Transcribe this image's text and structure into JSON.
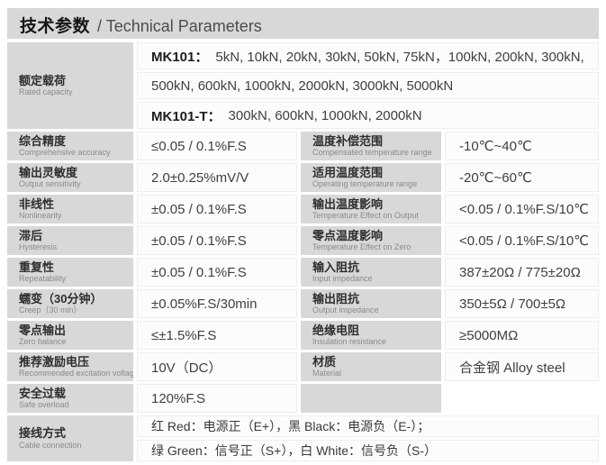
{
  "title": {
    "zh": "技术参数",
    "en": "/ Technical Parameters"
  },
  "colors": {
    "panel_gray": "#d8d8d8",
    "value_bg": "#fcfcfc",
    "value_border": "#ededed",
    "label_text": "#2e2e2e",
    "sublabel_text": "#8a8a8a",
    "value_text": "#3f3f3f"
  },
  "rated_capacity": {
    "key": "rated-capacity",
    "label": {
      "zh": "额定载荷",
      "en": "Rated capacity"
    },
    "lines": [
      {
        "bold": "MK101：",
        "text": "5kN, 10kN, 20kN, 30kN, 50kN, 75kN，100kN, 200kN, 300kN,"
      },
      {
        "bold": "",
        "text": "500kN, 600kN, 1000kN, 2000kN, 3000kN, 5000kN"
      },
      {
        "bold": "MK101-T：",
        "text": "300kN, 600kN, 1000kN, 2000kN"
      }
    ]
  },
  "spec_rows": [
    {
      "left": {
        "key": "comprehensive-accuracy",
        "label": {
          "zh": "综合精度",
          "en": "Comprehensive accuracy"
        },
        "value": "≤0.05 / 0.1%F.S"
      },
      "right": {
        "key": "compensated-temperature-range",
        "label": {
          "zh": "温度补偿范围",
          "en": "Compensated temperature range"
        },
        "value": "-10℃~40℃"
      }
    },
    {
      "left": {
        "key": "output-sensitivity",
        "label": {
          "zh": "输出灵敏度",
          "en": "Output sensitivity"
        },
        "value": "2.0±0.25%mV/V"
      },
      "right": {
        "key": "operating-temperature-range",
        "label": {
          "zh": "适用温度范围",
          "en": "Operating temperature range"
        },
        "value": "-20℃~60℃"
      }
    },
    {
      "left": {
        "key": "nonlinearity",
        "label": {
          "zh": "非线性",
          "en": "Nonlinearity"
        },
        "value": "±0.05 / 0.1%F.S"
      },
      "right": {
        "key": "temperature-effect-on-output",
        "label": {
          "zh": "输出温度影响",
          "en": "Temperature Effect on Output"
        },
        "value": "<0.05 / 0.1%F.S/10℃"
      }
    },
    {
      "left": {
        "key": "hysteresis",
        "label": {
          "zh": "滞后",
          "en": "Hysteresis"
        },
        "value": "±0.05 / 0.1%F.S"
      },
      "right": {
        "key": "temperature-effect-on-zero",
        "label": {
          "zh": "零点温度影响",
          "en": "Temperature Effect on Zero"
        },
        "value": "<0.05 / 0.1%F.S/10℃"
      }
    },
    {
      "left": {
        "key": "repeatability",
        "label": {
          "zh": "重复性",
          "en": "Repeatability"
        },
        "value": "±0.05 / 0.1%F.S"
      },
      "right": {
        "key": "input-impedance",
        "label": {
          "zh": "输入阻抗",
          "en": "Input impedance"
        },
        "value": "387±20Ω / 775±20Ω"
      }
    },
    {
      "left": {
        "key": "creep",
        "label": {
          "zh": "蠕变（30分钟）",
          "en": "Creep（30 min）"
        },
        "value": "±0.05%F.S/30min"
      },
      "right": {
        "key": "output-impedance",
        "label": {
          "zh": "输出阻抗",
          "en": "Output impedance"
        },
        "value": "350±5Ω / 700±5Ω"
      }
    },
    {
      "left": {
        "key": "zero-balance",
        "label": {
          "zh": "零点输出",
          "en": "Zero balance"
        },
        "value": "≤±1.5%F.S"
      },
      "right": {
        "key": "insulation-resistance",
        "label": {
          "zh": "绝缘电阻",
          "en": "Insulation resistance"
        },
        "value": "≥5000MΩ"
      }
    },
    {
      "left": {
        "key": "recommended-excitation-voltage",
        "label": {
          "zh": "推荐激励电压",
          "en": "Recommended excitation voltage"
        },
        "value": "10V（DC）"
      },
      "right": {
        "key": "material",
        "label": {
          "zh": "材质",
          "en": "Material"
        },
        "value": "合金钢 Alloy steel"
      }
    },
    {
      "left": {
        "key": "safe-overload",
        "label": {
          "zh": "安全过载",
          "en": "Safe overload"
        },
        "value": "120%F.S"
      },
      "right": null
    }
  ],
  "cable_connection": {
    "key": "cable-connection",
    "label": {
      "zh": "接线方式",
      "en": "Cable connection"
    },
    "lines": [
      "红 Red：电源正（E+），黑 Black：电源负（E-）；",
      "绿 Green：信号正（S+），白 White：信号负（S-）"
    ]
  }
}
